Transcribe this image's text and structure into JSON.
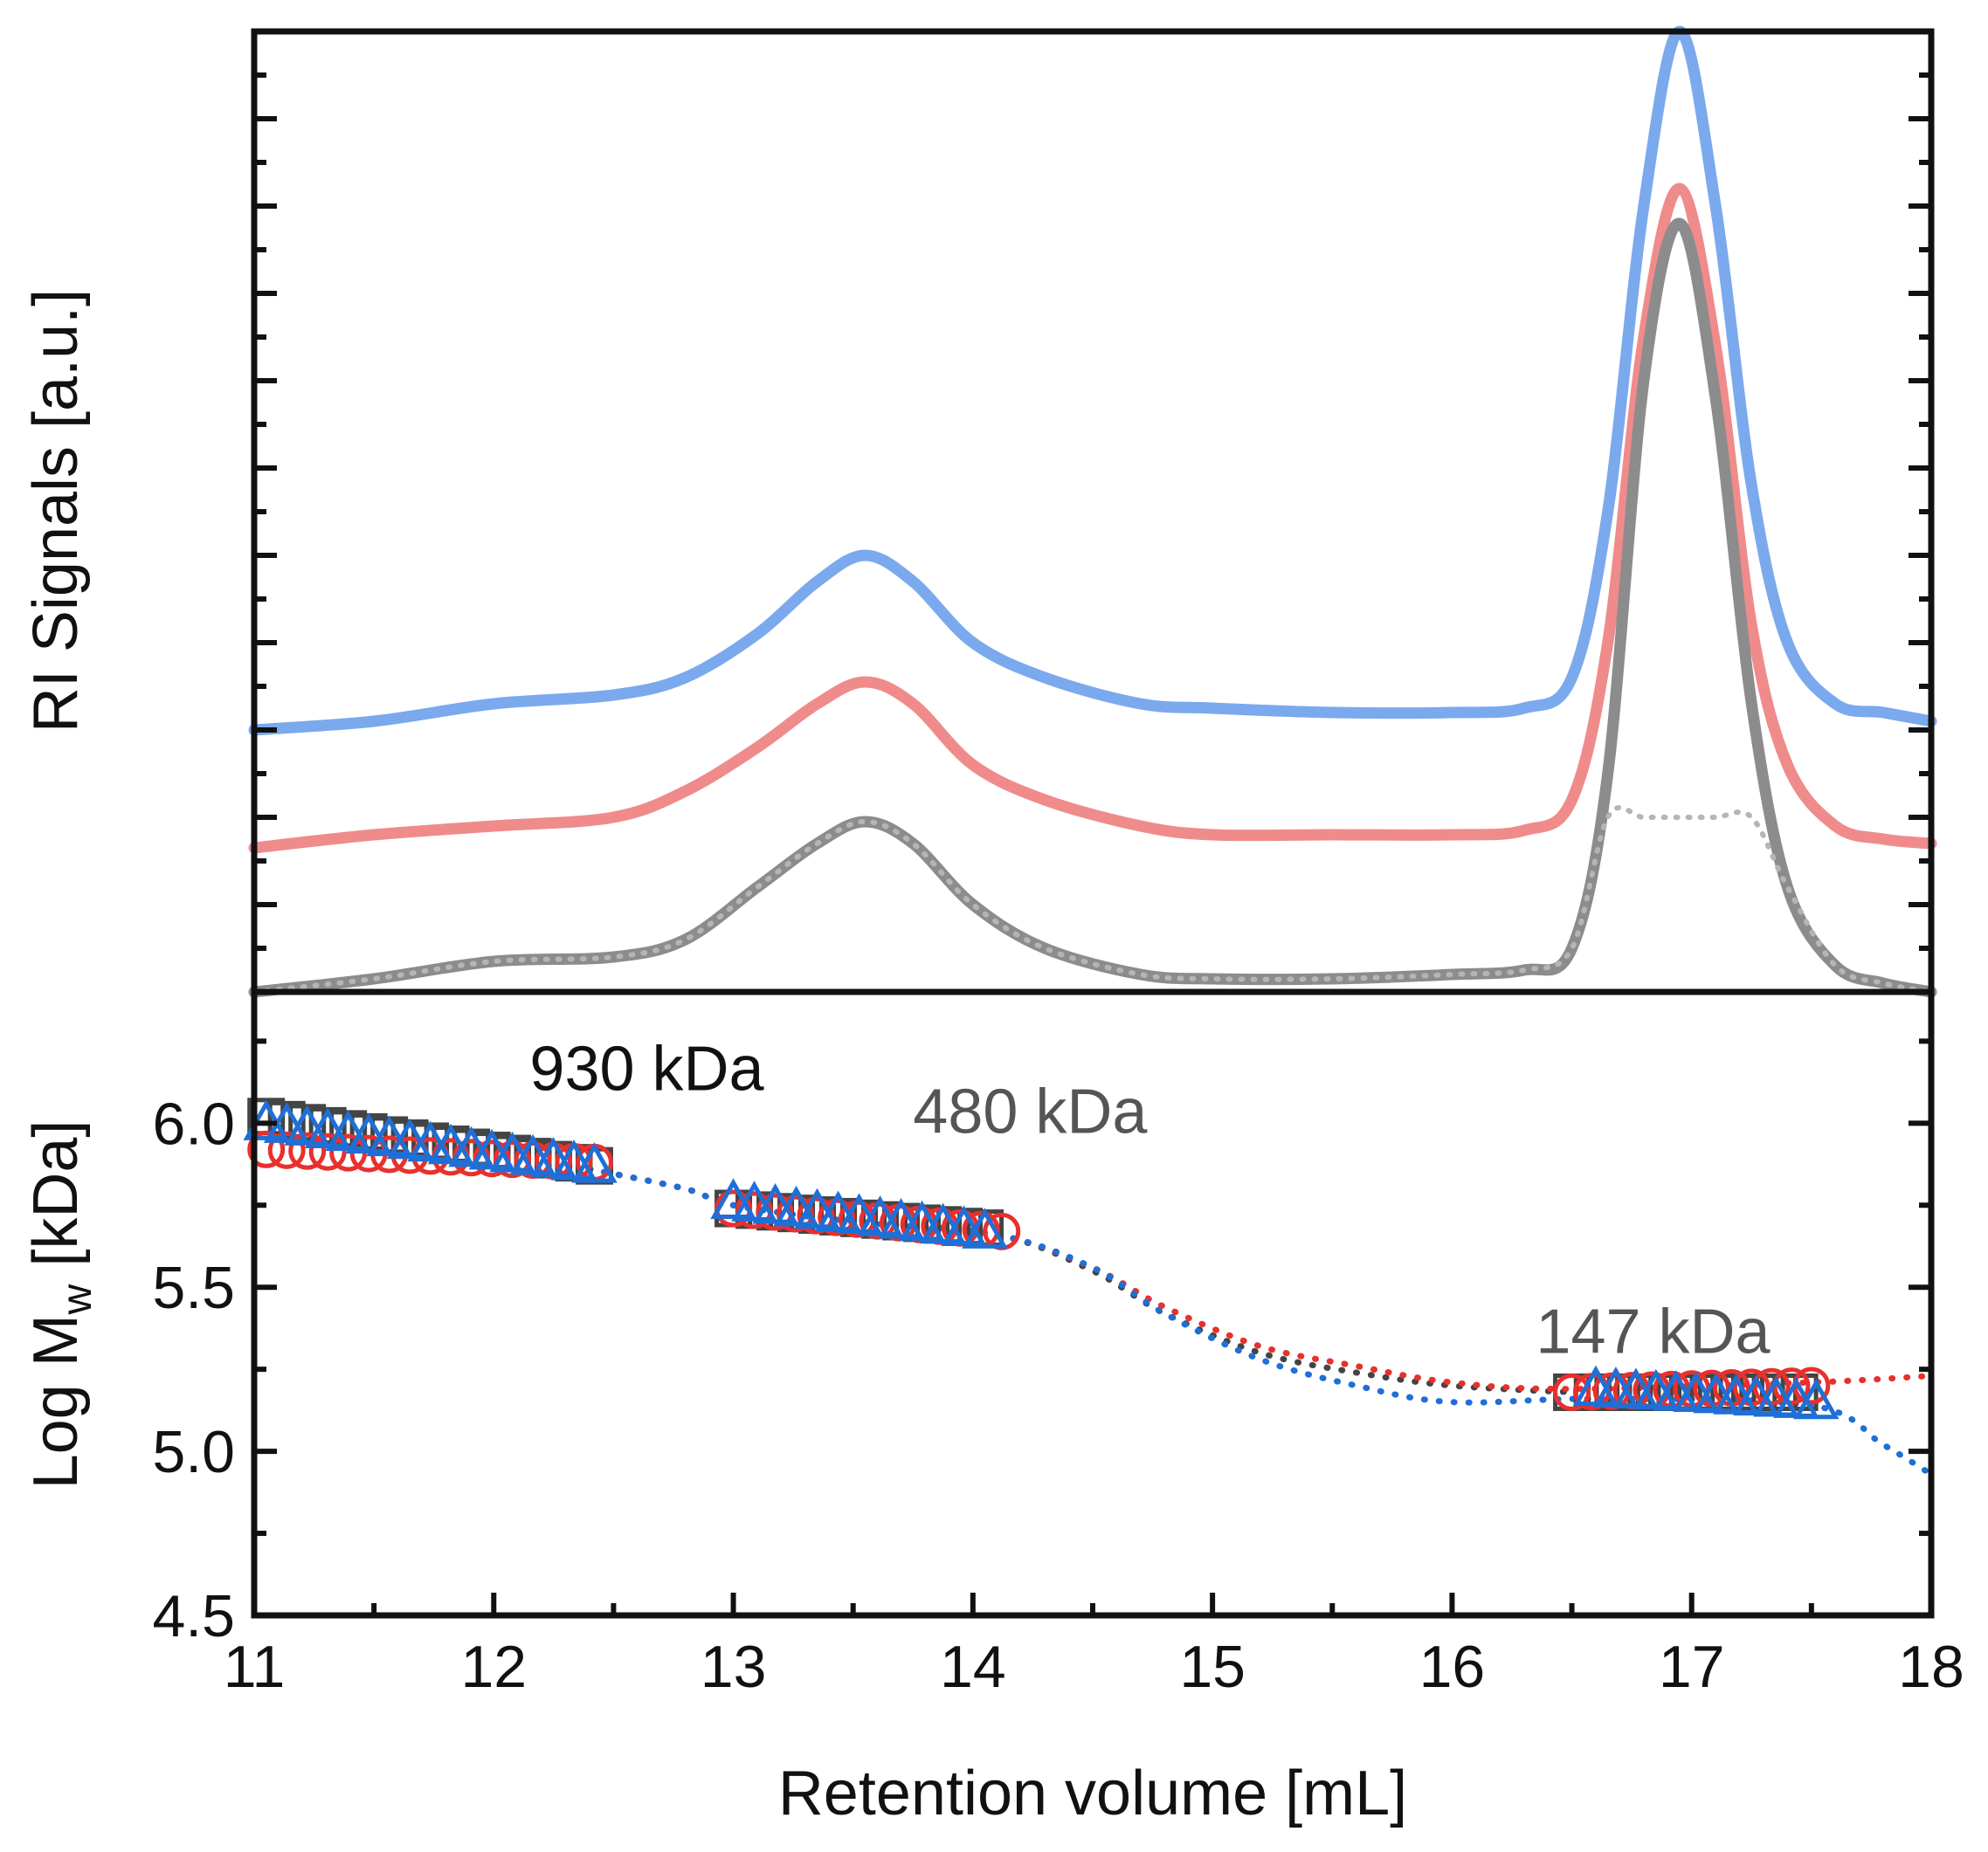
{
  "chart_data": [
    {
      "type": "line",
      "panel": "top",
      "ylabel": "RI Signals [a.u.]",
      "xlim": [
        11,
        18
      ],
      "ylim": [
        0,
        1.1
      ],
      "y_tick_labels_shown": false,
      "series": [
        {
          "name": "blue",
          "color": "#7aa9ee",
          "x": [
            11.0,
            11.5,
            12.0,
            12.5,
            12.8,
            13.1,
            13.35,
            13.55,
            13.75,
            14.0,
            14.3,
            14.7,
            15.0,
            15.5,
            16.0,
            16.3,
            16.5,
            16.65,
            16.8,
            16.95,
            17.1,
            17.25,
            17.4,
            17.6,
            17.8,
            18.0
          ],
          "y": [
            0.3,
            0.31,
            0.33,
            0.34,
            0.36,
            0.41,
            0.47,
            0.5,
            0.47,
            0.4,
            0.36,
            0.33,
            0.325,
            0.32,
            0.32,
            0.325,
            0.36,
            0.55,
            0.9,
            1.1,
            0.9,
            0.58,
            0.4,
            0.33,
            0.32,
            0.31
          ]
        },
        {
          "name": "red",
          "color": "#f08b8b",
          "x": [
            11.0,
            11.5,
            12.0,
            12.5,
            12.8,
            13.1,
            13.35,
            13.55,
            13.75,
            14.0,
            14.3,
            14.7,
            15.0,
            15.5,
            16.0,
            16.3,
            16.5,
            16.65,
            16.8,
            16.95,
            17.1,
            17.25,
            17.4,
            17.6,
            17.8,
            18.0
          ],
          "y": [
            0.165,
            0.18,
            0.19,
            0.2,
            0.23,
            0.28,
            0.33,
            0.355,
            0.33,
            0.26,
            0.22,
            0.19,
            0.18,
            0.18,
            0.18,
            0.185,
            0.22,
            0.4,
            0.75,
            0.92,
            0.74,
            0.42,
            0.26,
            0.19,
            0.175,
            0.17
          ]
        },
        {
          "name": "gray",
          "color": "#8c8c8c",
          "x": [
            11.0,
            11.5,
            12.0,
            12.5,
            12.8,
            13.1,
            13.35,
            13.55,
            13.75,
            14.0,
            14.3,
            14.7,
            15.0,
            15.5,
            16.0,
            16.3,
            16.5,
            16.65,
            16.8,
            16.95,
            17.1,
            17.25,
            17.4,
            17.6,
            17.8,
            18.0
          ],
          "y": [
            0.0,
            0.015,
            0.035,
            0.04,
            0.06,
            0.12,
            0.17,
            0.195,
            0.17,
            0.1,
            0.05,
            0.02,
            0.015,
            0.015,
            0.02,
            0.025,
            0.05,
            0.25,
            0.7,
            0.88,
            0.68,
            0.33,
            0.12,
            0.03,
            0.01,
            0.0
          ]
        }
      ]
    },
    {
      "type": "scatter",
      "panel": "bottom",
      "xlabel": "Retention volume [mL]",
      "ylabel": "Log M",
      "ylabel_sub": "w",
      "ylabel_suffix": " [kDa]",
      "xlim": [
        11,
        18
      ],
      "ylim": [
        4.5,
        6.4
      ],
      "x_ticks": [
        11,
        12,
        13,
        14,
        15,
        16,
        17,
        18
      ],
      "x_tick_labels": [
        "11",
        "12",
        "13",
        "14",
        "15",
        "16",
        "17",
        "18"
      ],
      "y_ticks": [
        4.5,
        5.0,
        5.5,
        6.0
      ],
      "y_tick_labels": [
        "4.5",
        "5.0",
        "5.5",
        "6.0"
      ],
      "annotations": [
        {
          "text": "930 kDa",
          "x": 12.15,
          "y": 6.1,
          "color": "#111111"
        },
        {
          "text": "480 kDa",
          "x": 13.75,
          "y": 5.97,
          "color": "#555555"
        },
        {
          "text": "147 kDa",
          "x": 16.35,
          "y": 5.3,
          "color": "#555555"
        }
      ],
      "series": [
        {
          "name": "gray squares",
          "marker": "square",
          "color": "#444444",
          "fit_x": [
            12.4,
            12.8,
            13.0,
            13.5,
            14.1,
            14.5,
            14.8,
            15.2,
            15.6,
            16.0,
            16.5
          ],
          "fit_y": [
            5.86,
            5.8,
            5.75,
            5.7,
            5.66,
            5.55,
            5.42,
            5.3,
            5.24,
            5.2,
            5.18
          ],
          "segments": [
            {
              "x_start": 11.05,
              "x_end": 12.42,
              "y_start": 6.02,
              "y_end": 5.87
            },
            {
              "x_start": 13.0,
              "x_end": 14.05,
              "y_start": 5.74,
              "y_end": 5.68
            },
            {
              "x_start": 16.5,
              "x_end": 17.45,
              "y_start": 5.18,
              "y_end": 5.18
            }
          ]
        },
        {
          "name": "red circles",
          "marker": "circle",
          "color": "#e8302d",
          "fit_x": [
            12.4,
            12.8,
            13.0,
            13.5,
            14.1,
            14.5,
            14.8,
            15.2,
            15.6,
            16.0,
            16.5,
            17.5,
            18.0
          ],
          "fit_y": [
            5.86,
            5.8,
            5.75,
            5.7,
            5.66,
            5.56,
            5.44,
            5.32,
            5.26,
            5.21,
            5.19,
            5.21,
            5.23
          ],
          "segments": [
            {
              "x_start": 11.05,
              "x_end": 12.42,
              "y_start": 5.92,
              "y_end": 5.88
            },
            {
              "x_start": 13.0,
              "x_end": 14.12,
              "y_start": 5.74,
              "y_end": 5.67
            },
            {
              "x_start": 16.5,
              "x_end": 17.5,
              "y_start": 5.18,
              "y_end": 5.2
            }
          ]
        },
        {
          "name": "blue triangles",
          "marker": "triangle",
          "color": "#1f6fd6",
          "fit_x": [
            12.4,
            12.8,
            13.0,
            13.5,
            14.1,
            14.5,
            14.8,
            15.2,
            15.6,
            16.0,
            16.6,
            17.5,
            17.8,
            18.0
          ],
          "fit_y": [
            5.86,
            5.8,
            5.75,
            5.7,
            5.66,
            5.56,
            5.42,
            5.28,
            5.2,
            5.15,
            5.16,
            5.14,
            5.02,
            4.93
          ],
          "segments": [
            {
              "x_start": 11.05,
              "x_end": 12.42,
              "y_start": 6.0,
              "y_end": 5.87
            },
            {
              "x_start": 13.0,
              "x_end": 14.05,
              "y_start": 5.76,
              "y_end": 5.67
            },
            {
              "x_start": 16.6,
              "x_end": 17.52,
              "y_start": 5.19,
              "y_end": 5.15
            }
          ]
        }
      ]
    }
  ]
}
